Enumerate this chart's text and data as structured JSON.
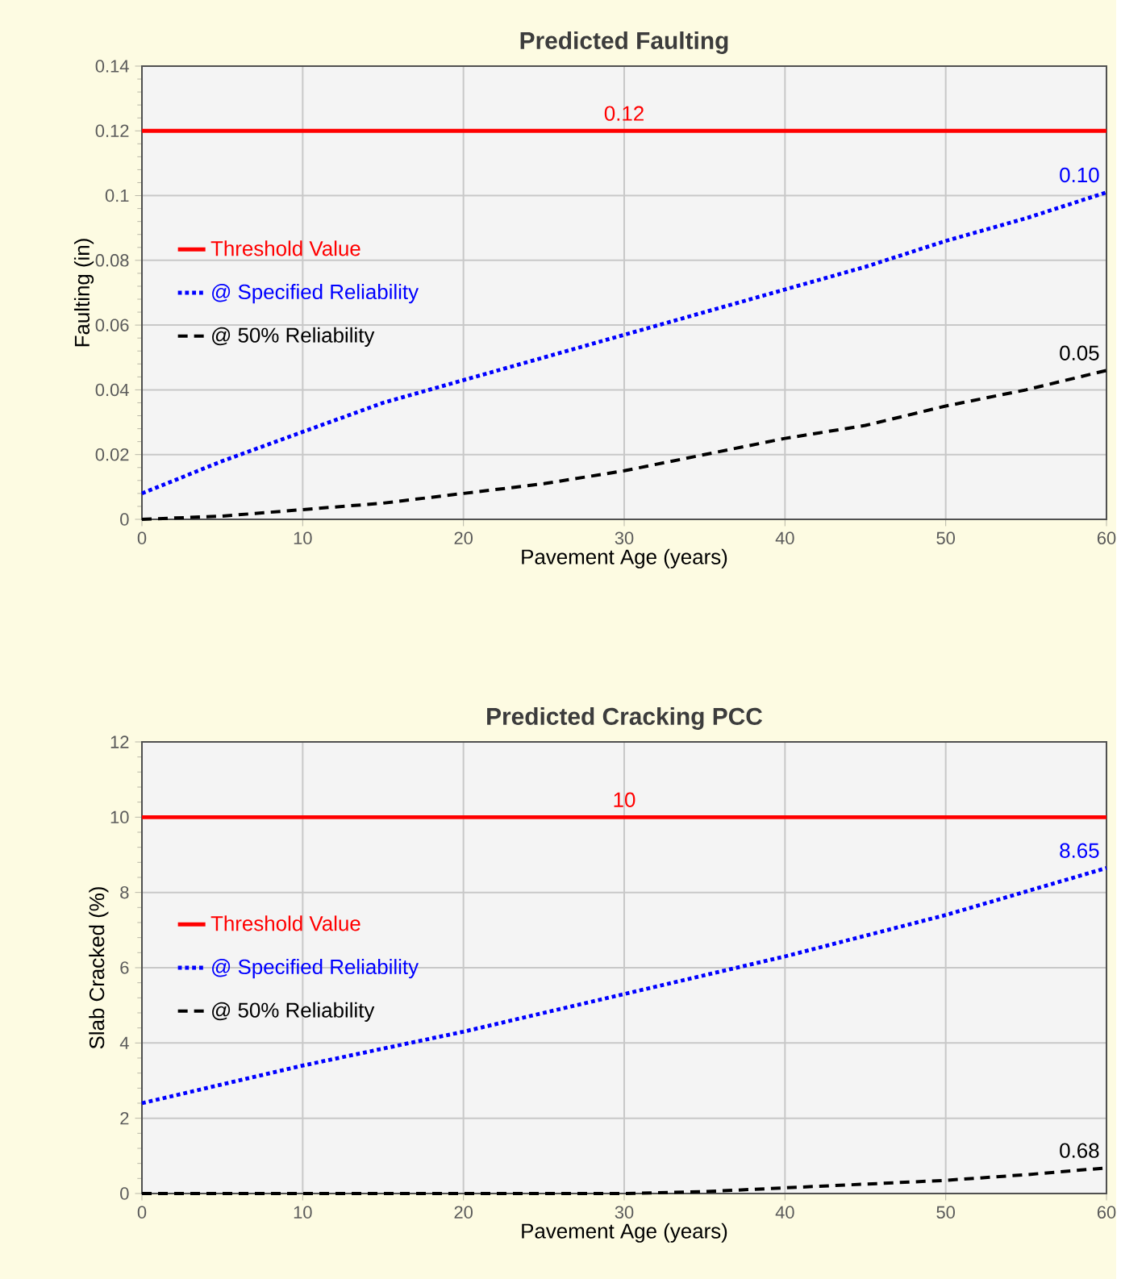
{
  "chart_data": [
    {
      "type": "line",
      "title": "Predicted Faulting",
      "xlabel": "Pavement Age (years)",
      "ylabel": "Faulting (in)",
      "xlim": [
        0,
        60
      ],
      "xticks": [
        0,
        10,
        20,
        30,
        40,
        50,
        60
      ],
      "ylim": [
        0,
        0.14
      ],
      "yticks": [
        0,
        0.02,
        0.04,
        0.06,
        0.08,
        {
          "value": 0.1,
          "label": "0.1"
        },
        0.12,
        0.14
      ],
      "grid": true,
      "legend": "left",
      "marker": "none",
      "series": [
        {
          "name": "Threshold Value",
          "color": "#ff0000",
          "line_style": "solid",
          "x": [
            0,
            30,
            60
          ],
          "values": [
            0.12,
            0.12,
            0.12
          ],
          "value_labels": [
            null,
            "0.12",
            null
          ]
        },
        {
          "name": "@ Specified Reliability",
          "color": "#0000ff",
          "line_style": "dotted",
          "x": [
            0,
            5,
            10,
            15,
            20,
            25,
            30,
            35,
            40,
            45,
            50,
            55,
            60
          ],
          "values": [
            0.008,
            0.018,
            0.027,
            0.036,
            0.043,
            0.05,
            0.057,
            0.064,
            0.071,
            0.078,
            0.086,
            0.093,
            0.101
          ],
          "value_labels": [
            null,
            null,
            null,
            null,
            null,
            null,
            null,
            null,
            null,
            null,
            null,
            null,
            "0.10"
          ]
        },
        {
          "name": "@ 50% Reliability",
          "color": "#000000",
          "line_style": "dashed",
          "x": [
            0,
            5,
            10,
            15,
            20,
            25,
            30,
            35,
            40,
            45,
            50,
            55,
            60
          ],
          "values": [
            0,
            0.001,
            0.003,
            0.005,
            0.008,
            0.011,
            0.015,
            0.02,
            0.025,
            0.029,
            0.035,
            0.04,
            0.046
          ],
          "value_labels": [
            null,
            null,
            null,
            null,
            null,
            null,
            null,
            null,
            null,
            null,
            null,
            null,
            "0.05"
          ]
        }
      ]
    },
    {
      "type": "line",
      "title": "Predicted Cracking PCC",
      "xlabel": "Pavement Age (years)",
      "ylabel": "Slab Cracked (%)",
      "xlim": [
        0,
        60
      ],
      "xticks": [
        0,
        10,
        20,
        30,
        40,
        50,
        60
      ],
      "ylim": [
        0,
        12
      ],
      "yticks": [
        0,
        2,
        4,
        6,
        8,
        10,
        12
      ],
      "grid": true,
      "legend": "left",
      "marker": "none",
      "series": [
        {
          "name": "Threshold Value",
          "color": "#ff0000",
          "line_style": "solid",
          "x": [
            0,
            30,
            60
          ],
          "values": [
            10,
            10,
            10
          ],
          "value_labels": [
            null,
            "10",
            null
          ]
        },
        {
          "name": "@ Specified Reliability",
          "color": "#0000ff",
          "line_style": "dotted",
          "x": [
            0,
            10,
            20,
            30,
            40,
            50,
            60
          ],
          "values": [
            2.4,
            3.4,
            4.3,
            5.3,
            6.3,
            7.4,
            8.65
          ],
          "value_labels": [
            null,
            null,
            null,
            null,
            null,
            null,
            "8.65"
          ]
        },
        {
          "name": "@ 50% Reliability",
          "color": "#000000",
          "line_style": "dashed",
          "x": [
            0,
            10,
            20,
            30,
            35,
            40,
            45,
            50,
            55,
            60
          ],
          "values": [
            0,
            0,
            0,
            0,
            0.05,
            0.15,
            0.25,
            0.35,
            0.5,
            0.68
          ],
          "value_labels": [
            null,
            null,
            null,
            null,
            null,
            null,
            null,
            null,
            null,
            "0.68"
          ]
        }
      ]
    }
  ]
}
